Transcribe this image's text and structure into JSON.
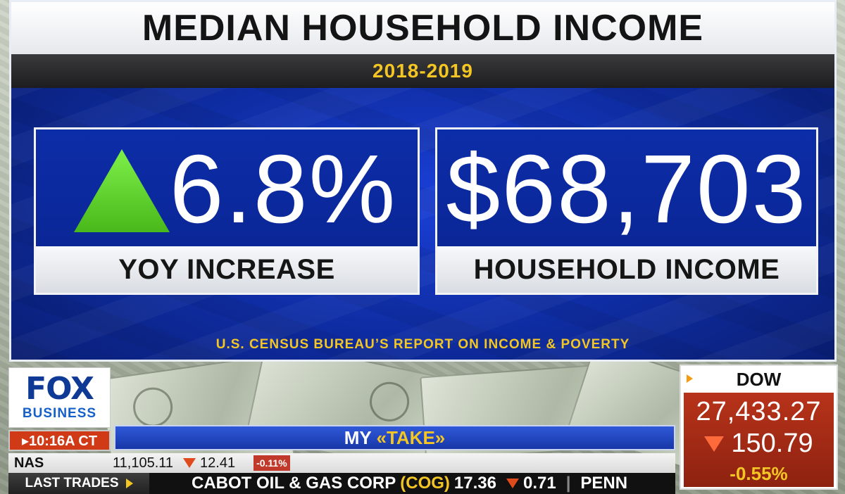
{
  "graphic": {
    "title": "MEDIAN HOUSEHOLD INCOME",
    "period": "2018-2019",
    "cards": [
      {
        "value": "6.8%",
        "label": "YOY INCREASE",
        "icon": "up-triangle-icon"
      },
      {
        "value": "$68,703",
        "label": "HOUSEHOLD INCOME"
      }
    ],
    "source": "U.S. CENSUS BUREAU’S REPORT ON INCOME & POVERTY"
  },
  "network": {
    "logo_top": "FOX",
    "logo_bottom": "BUSINESS",
    "time": "▸10:16A CT"
  },
  "segment": {
    "my": "MY",
    "take": "«TAKE»"
  },
  "ticker": {
    "index_name": "NAS",
    "index_value": "11,105.11",
    "index_change": "12.41",
    "index_pct": "-0.11%",
    "last_trades_label": "LAST TRADES",
    "trade_name": "CABOT OIL & GAS CORP",
    "trade_symbol": "(COG)",
    "trade_price": "17.36",
    "trade_change": "0.71",
    "next_item": "PENN"
  },
  "dow": {
    "label": "DOW",
    "value": "27,433.27",
    "change": "150.79",
    "pct": "-0.55%"
  },
  "colors": {
    "accent_yellow": "#f3c623",
    "panel_blue": "#0f2ea6",
    "up_green": "#5fd82a",
    "down_red": "#c0392b"
  }
}
